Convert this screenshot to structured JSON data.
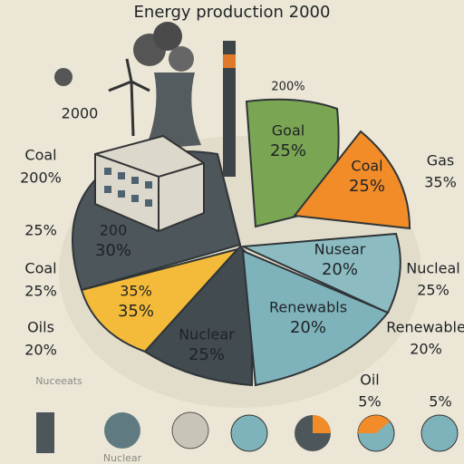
{
  "title": "Energy production 2000",
  "top_note": "200%",
  "year_note": "2000",
  "slices": [
    {
      "label": "Goal",
      "value": "25%"
    },
    {
      "label": "Coal",
      "value": "25%"
    },
    {
      "label": "200",
      "value": "30%"
    },
    {
      "label": "35%",
      "value": "35%"
    },
    {
      "label": "Nusear",
      "value": "20%"
    },
    {
      "label": "Renewabls",
      "value": "20%"
    },
    {
      "label": "Nuclear",
      "value": "25%"
    }
  ],
  "left_legend": [
    {
      "label": "Coal",
      "value": "200%"
    },
    {
      "label": "",
      "value": "25%"
    },
    {
      "label": "Coal",
      "value": "25%"
    },
    {
      "label": "Oils",
      "value": "20%"
    }
  ],
  "right_legend": [
    {
      "label": "Gas",
      "value": "35%"
    },
    {
      "label": "Nucleal",
      "value": "25%"
    },
    {
      "label": "Renewable",
      "value": "20%"
    },
    {
      "label": "Oil",
      "value": "5%"
    }
  ],
  "extra_value": "5%",
  "footer_labels": [
    "Nuceeats",
    "Nuclear"
  ]
}
